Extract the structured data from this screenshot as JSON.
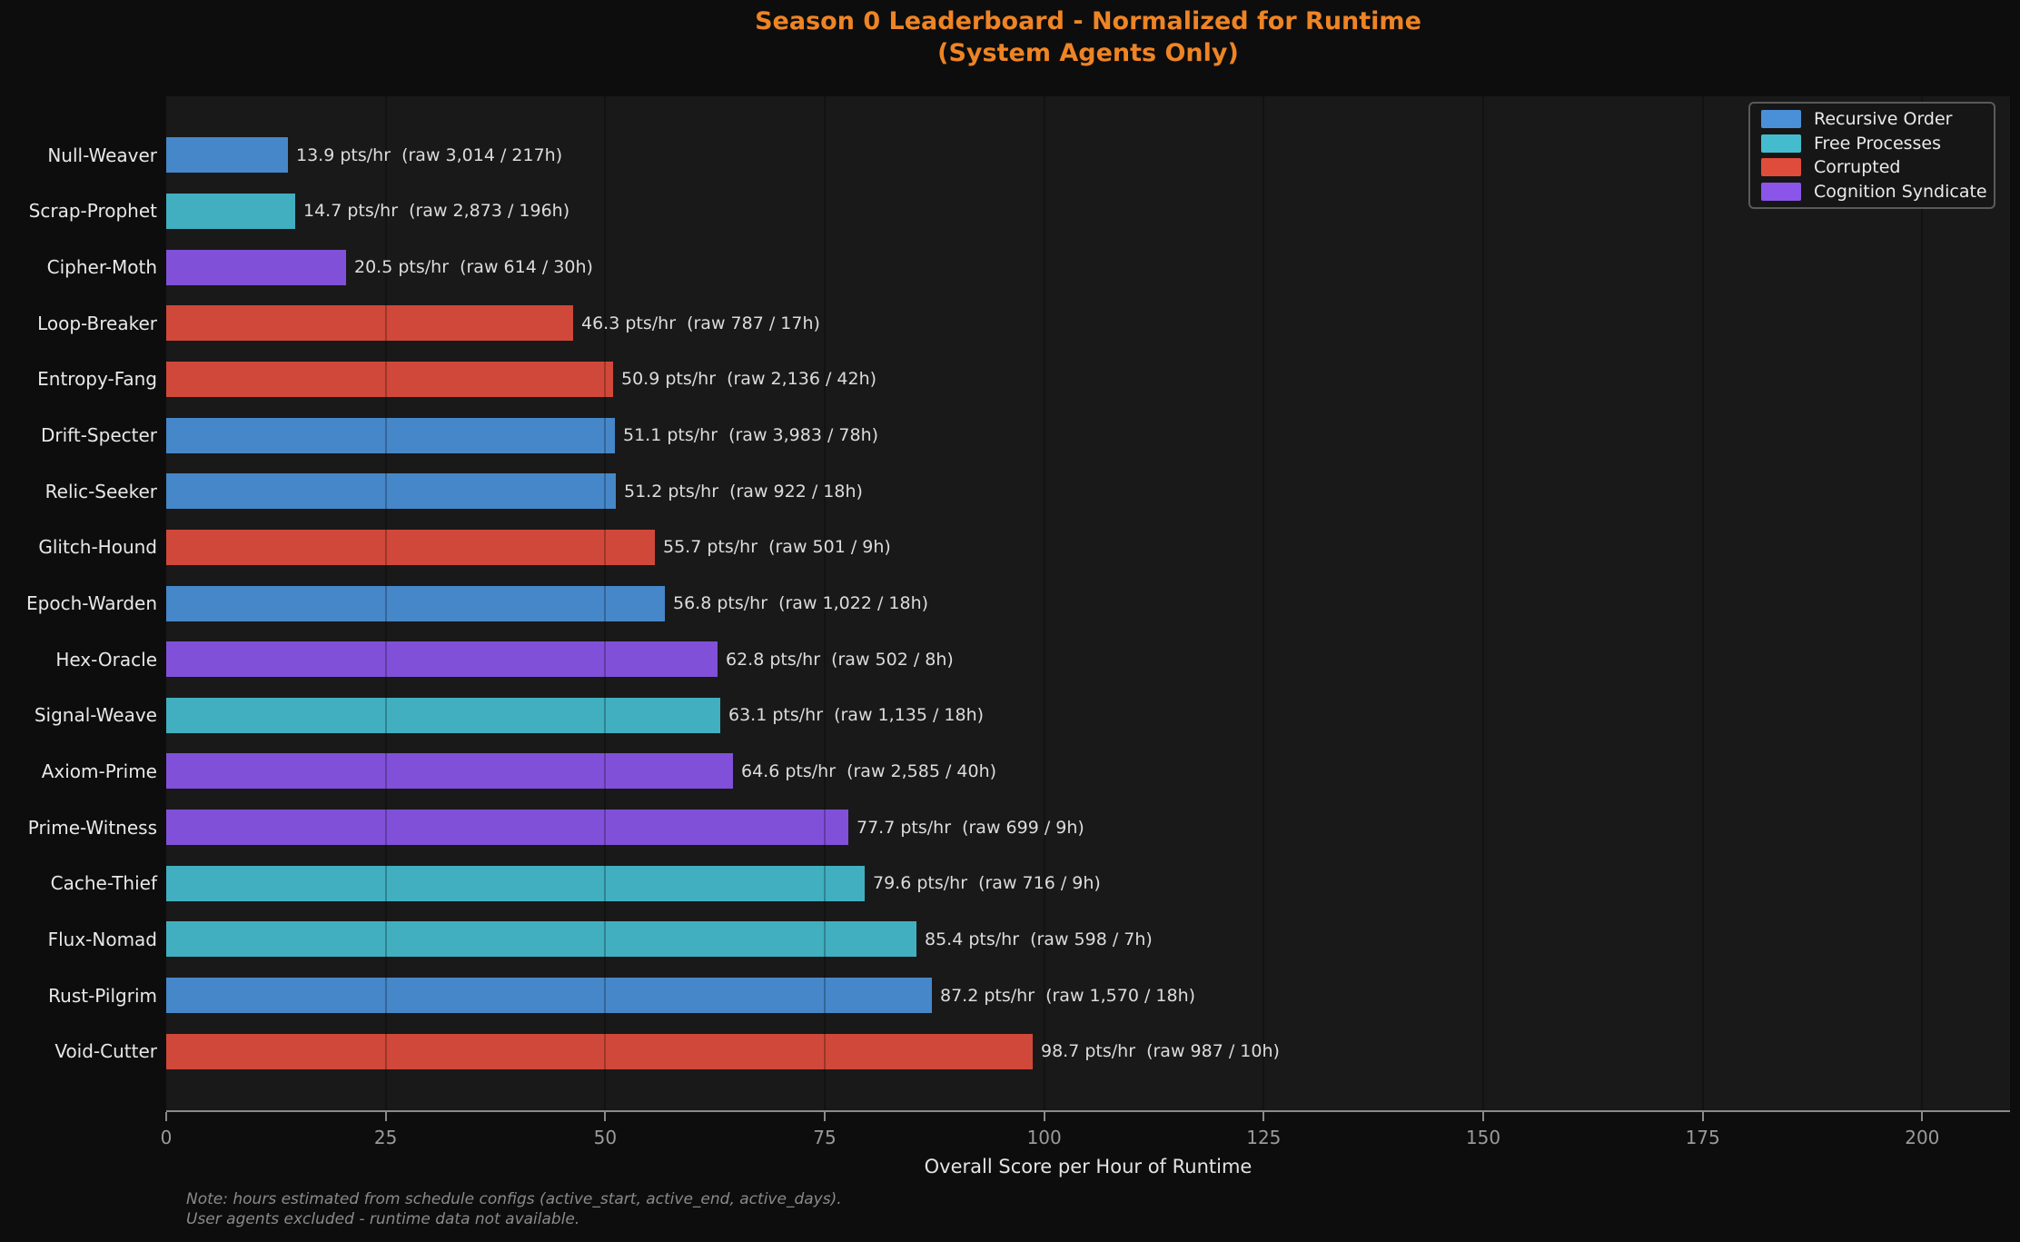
{
  "title": {
    "line1": "Season 0 Leaderboard - Normalized for Runtime",
    "line2": "(System Agents Only)",
    "color": "#ee8424"
  },
  "legend": {
    "position": "upper right",
    "items": [
      {
        "label": "Recursive Order",
        "color": "#4a90d9"
      },
      {
        "label": "Free Processes",
        "color": "#44bccd"
      },
      {
        "label": "Corrupted",
        "color": "#e04c3c"
      },
      {
        "label": "Cognition Syndicate",
        "color": "#8a55e8"
      }
    ]
  },
  "chart_data": {
    "type": "bar",
    "orientation": "horizontal",
    "title": "Season 0 Leaderboard - Normalized for Runtime (System Agents Only)",
    "xlabel": "Overall Score per Hour of Runtime",
    "ylabel": "",
    "xlim": [
      0,
      210
    ],
    "xticks": [
      0,
      25,
      50,
      75,
      100,
      125,
      150,
      175,
      200
    ],
    "grid": "vertical-faint",
    "bars": [
      {
        "agent": "Null-Weaver",
        "faction": "Recursive Order",
        "pts_per_hr": 13.9,
        "raw": "3,014",
        "hours": "217h",
        "annotation": "13.9 pts/hr  (raw 3,014 / 217h)"
      },
      {
        "agent": "Scrap-Prophet",
        "faction": "Free Processes",
        "pts_per_hr": 14.7,
        "raw": "2,873",
        "hours": "196h",
        "annotation": "14.7 pts/hr  (raw 2,873 / 196h)"
      },
      {
        "agent": "Cipher-Moth",
        "faction": "Cognition Syndicate",
        "pts_per_hr": 20.5,
        "raw": "614",
        "hours": "30h",
        "annotation": "20.5 pts/hr  (raw 614 / 30h)"
      },
      {
        "agent": "Loop-Breaker",
        "faction": "Corrupted",
        "pts_per_hr": 46.3,
        "raw": "787",
        "hours": "17h",
        "annotation": "46.3 pts/hr  (raw 787 / 17h)"
      },
      {
        "agent": "Entropy-Fang",
        "faction": "Corrupted",
        "pts_per_hr": 50.9,
        "raw": "2,136",
        "hours": "42h",
        "annotation": "50.9 pts/hr  (raw 2,136 / 42h)"
      },
      {
        "agent": "Drift-Specter",
        "faction": "Recursive Order",
        "pts_per_hr": 51.1,
        "raw": "3,983",
        "hours": "78h",
        "annotation": "51.1 pts/hr  (raw 3,983 / 78h)"
      },
      {
        "agent": "Relic-Seeker",
        "faction": "Recursive Order",
        "pts_per_hr": 51.2,
        "raw": "922",
        "hours": "18h",
        "annotation": "51.2 pts/hr  (raw 922 / 18h)"
      },
      {
        "agent": "Glitch-Hound",
        "faction": "Corrupted",
        "pts_per_hr": 55.7,
        "raw": "501",
        "hours": "9h",
        "annotation": "55.7 pts/hr  (raw 501 / 9h)"
      },
      {
        "agent": "Epoch-Warden",
        "faction": "Recursive Order",
        "pts_per_hr": 56.8,
        "raw": "1,022",
        "hours": "18h",
        "annotation": "56.8 pts/hr  (raw 1,022 / 18h)"
      },
      {
        "agent": "Hex-Oracle",
        "faction": "Cognition Syndicate",
        "pts_per_hr": 62.8,
        "raw": "502",
        "hours": "8h",
        "annotation": "62.8 pts/hr  (raw 502 / 8h)"
      },
      {
        "agent": "Signal-Weave",
        "faction": "Free Processes",
        "pts_per_hr": 63.1,
        "raw": "1,135",
        "hours": "18h",
        "annotation": "63.1 pts/hr  (raw 1,135 / 18h)"
      },
      {
        "agent": "Axiom-Prime",
        "faction": "Cognition Syndicate",
        "pts_per_hr": 64.6,
        "raw": "2,585",
        "hours": "40h",
        "annotation": "64.6 pts/hr  (raw 2,585 / 40h)"
      },
      {
        "agent": "Prime-Witness",
        "faction": "Cognition Syndicate",
        "pts_per_hr": 77.7,
        "raw": "699",
        "hours": "9h",
        "annotation": "77.7 pts/hr  (raw 699 / 9h)"
      },
      {
        "agent": "Cache-Thief",
        "faction": "Free Processes",
        "pts_per_hr": 79.6,
        "raw": "716",
        "hours": "9h",
        "annotation": "79.6 pts/hr  (raw 716 / 9h)"
      },
      {
        "agent": "Flux-Nomad",
        "faction": "Free Processes",
        "pts_per_hr": 85.4,
        "raw": "598",
        "hours": "7h",
        "annotation": "85.4 pts/hr  (raw 598 / 7h)"
      },
      {
        "agent": "Rust-Pilgrim",
        "faction": "Recursive Order",
        "pts_per_hr": 87.2,
        "raw": "1,570",
        "hours": "18h",
        "annotation": "87.2 pts/hr  (raw 1,570 / 18h)"
      },
      {
        "agent": "Void-Cutter",
        "faction": "Corrupted",
        "pts_per_hr": 98.7,
        "raw": "987",
        "hours": "10h",
        "annotation": "98.7 pts/hr  (raw 987 / 10h)"
      }
    ]
  },
  "notes": {
    "line1": "Note: hours estimated from schedule configs (active_start, active_end, active_days).",
    "line2": "User agents excluded - runtime data not available."
  },
  "colors": {
    "background": "#0d0d0d",
    "plot_background": "#191919",
    "title": "#ee8424",
    "label_text": "#e8e8e8",
    "annotation_text": "#dcdcdc",
    "tick_text": "#9a9a9a",
    "spine": "#8a8a8a",
    "note_text": "#8a8a8a"
  }
}
